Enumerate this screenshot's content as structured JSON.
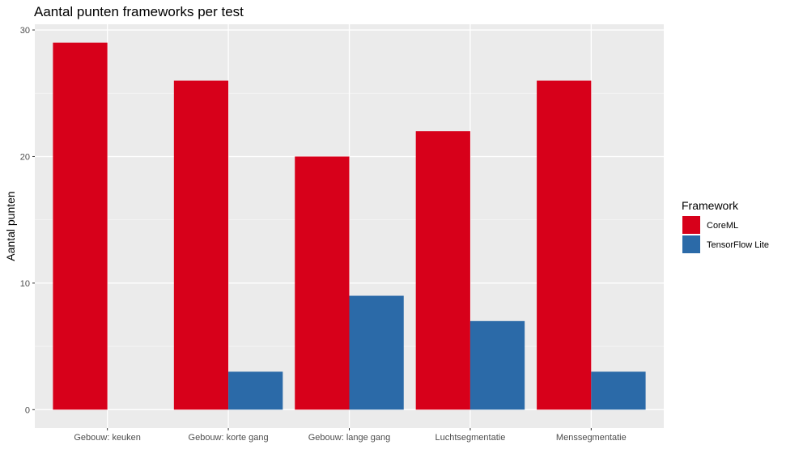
{
  "chart_data": {
    "type": "bar",
    "title": "Aantal punten frameworks per test",
    "xlabel": "",
    "ylabel": "Aantal punten",
    "categories": [
      "Gebouw: keuken",
      "Gebouw: korte gang",
      "Gebouw: lange gang",
      "Luchtsegmentatie",
      "Menssegmentatie"
    ],
    "series": [
      {
        "name": "CoreML",
        "color": "#d7001a",
        "values": [
          29,
          26,
          20,
          22,
          26
        ]
      },
      {
        "name": "TensorFlow Lite",
        "color": "#2b6aa8",
        "values": [
          0,
          3,
          9,
          7,
          3
        ]
      }
    ],
    "ylim": [
      -1.45,
      30.45
    ],
    "yticks": [
      0,
      10,
      20,
      30
    ],
    "grid": true,
    "legend": {
      "title": "Framework",
      "position": "right"
    }
  }
}
